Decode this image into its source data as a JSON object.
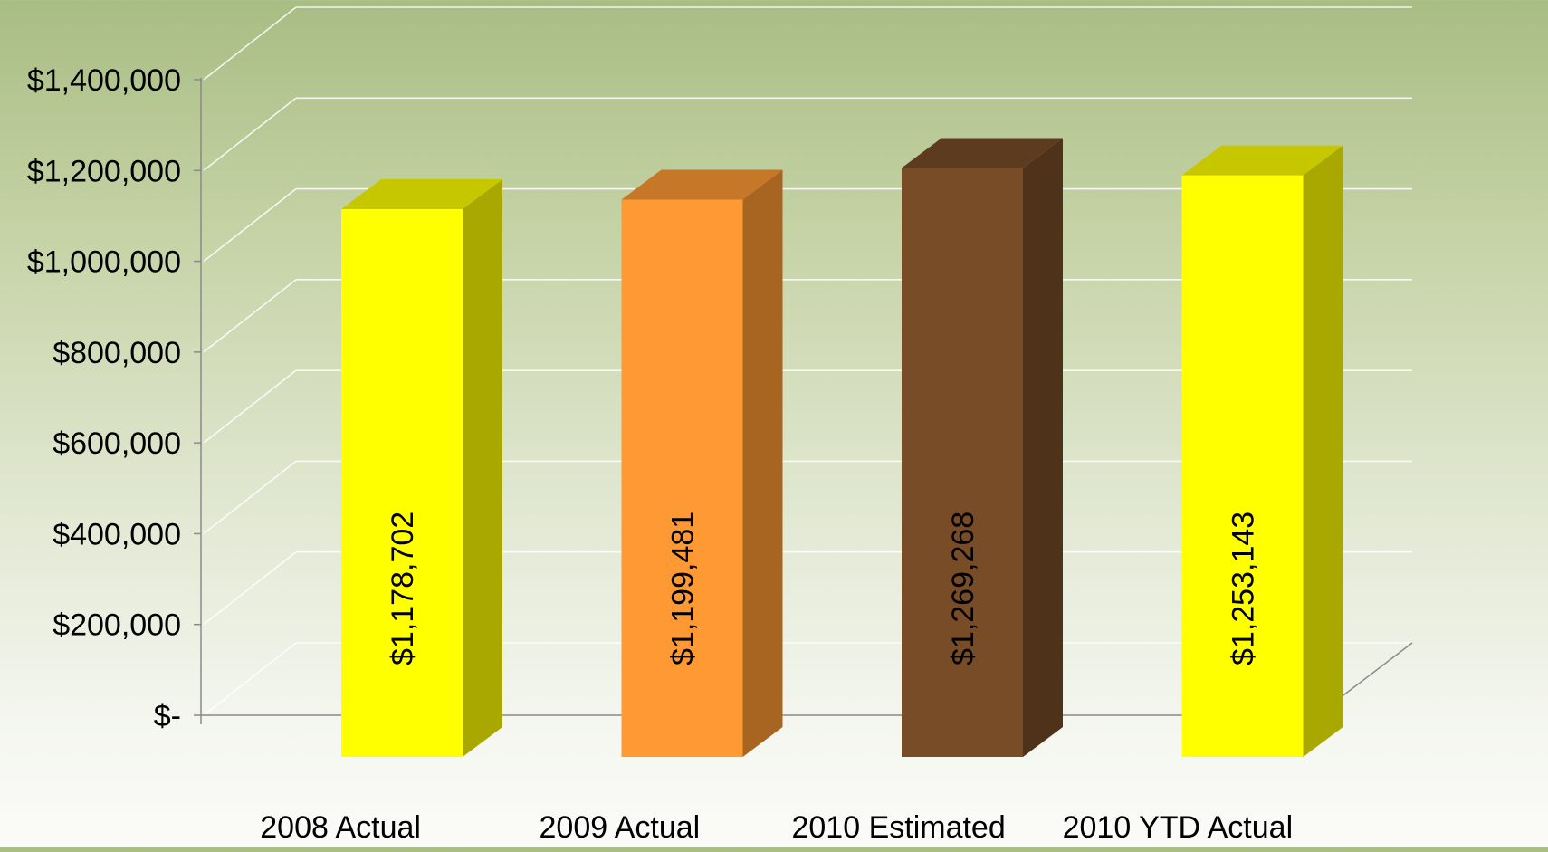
{
  "chart_data": {
    "type": "bar",
    "title": "",
    "xlabel": "",
    "ylabel": "",
    "categories": [
      "2008 Actual",
      "2009 Actual",
      "2010 Estimated",
      "2010 YTD Actual"
    ],
    "values": [
      1178702,
      1199481,
      1269268,
      1253143
    ],
    "value_labels": [
      "$1,178,702",
      "$1,199,481",
      "$1,269,268",
      "$1,253,143"
    ],
    "bar_colors": [
      "#ffff00",
      "#ff9933",
      "#774c27",
      "#ffff00"
    ],
    "y_ticks": [
      {
        "value": 0,
        "label": "$-"
      },
      {
        "value": 200000,
        "label": "$200,000"
      },
      {
        "value": 400000,
        "label": "$400,000"
      },
      {
        "value": 600000,
        "label": "$600,000"
      },
      {
        "value": 800000,
        "label": "$800,000"
      },
      {
        "value": 1000000,
        "label": "$1,000,000"
      },
      {
        "value": 1200000,
        "label": "$1,200,000"
      },
      {
        "value": 1400000,
        "label": "$1,400,000"
      }
    ],
    "ylim": [
      0,
      1400000
    ],
    "grid": true,
    "style": "3d-column",
    "legend": "none"
  }
}
